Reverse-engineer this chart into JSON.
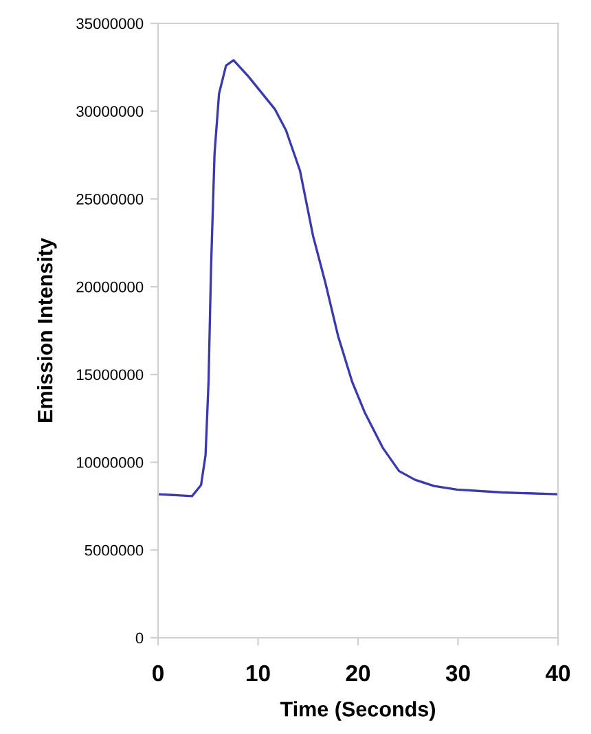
{
  "chart_data": {
    "type": "line",
    "xlabel": "Time (Seconds)",
    "ylabel": "Emission Intensity",
    "x": [
      0,
      3.4,
      4.3,
      4.75,
      5.05,
      5.3,
      5.65,
      6.1,
      6.8,
      7.55,
      9.0,
      11.7,
      12.8,
      14.2,
      15.5,
      16.7,
      18.0,
      19.4,
      20.7,
      22.5,
      24.1,
      25.7,
      27.6,
      29.9,
      34.4,
      40
    ],
    "series": [
      {
        "color": "#3a3aae",
        "values": [
          8180000,
          8070000,
          8700000,
          10400000,
          14600000,
          21100000,
          27600000,
          31000000,
          32600000,
          32900000,
          32000000,
          30100000,
          28900000,
          26600000,
          22900000,
          20300000,
          17200000,
          14600000,
          12800000,
          10800000,
          9500000,
          9000000,
          8650000,
          8440000,
          8280000,
          8180000
        ]
      }
    ],
    "xlim": [
      0,
      40
    ],
    "xticks": [
      0,
      10,
      20,
      30,
      40
    ],
    "ylim": [
      0,
      35000000
    ],
    "yticks": [
      0,
      5000000,
      10000000,
      15000000,
      20000000,
      25000000,
      30000000,
      35000000
    ],
    "grid": false,
    "legend": false,
    "marker": "none",
    "line_style": "solid"
  }
}
